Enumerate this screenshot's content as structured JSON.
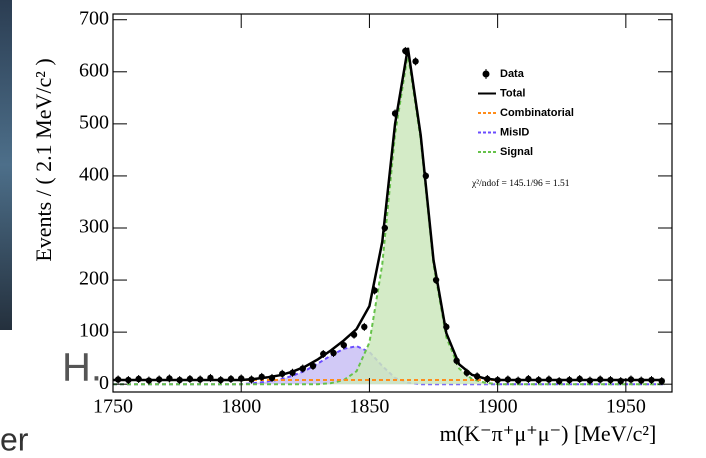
{
  "background_texts": [
    "H.",
    "er"
  ],
  "chart_data": {
    "type": "line",
    "x_label": "m(K⁻π⁺μ⁺μ⁻) [MeV/c²]",
    "y_label": "Events / ( 2.1 MeV/c² )",
    "annotation": "χ²/ndof = 145.1/96 = 1.51",
    "xlim": [
      1750,
      1968
    ],
    "ylim": [
      -15,
      711
    ],
    "xticks": [
      1750,
      1800,
      1850,
      1900,
      1950
    ],
    "yticks": [
      0,
      100,
      200,
      300,
      400,
      500,
      600,
      700
    ],
    "x": [
      1750,
      1755,
      1760,
      1765,
      1770,
      1775,
      1780,
      1785,
      1790,
      1795,
      1800,
      1805,
      1810,
      1815,
      1820,
      1825,
      1830,
      1835,
      1840,
      1845,
      1850,
      1855,
      1860,
      1865,
      1870,
      1875,
      1880,
      1885,
      1890,
      1895,
      1900,
      1905,
      1910,
      1915,
      1920,
      1925,
      1930,
      1935,
      1940,
      1945,
      1950,
      1955,
      1960,
      1965
    ],
    "series": [
      {
        "name": "Data",
        "color": "#000000",
        "kind": "points",
        "x": [
          1752,
          1756,
          1760,
          1764,
          1768,
          1772,
          1776,
          1780,
          1784,
          1788,
          1792,
          1796,
          1800,
          1804,
          1808,
          1812,
          1816,
          1820,
          1824,
          1828,
          1832,
          1836,
          1840,
          1844,
          1848,
          1852,
          1856,
          1860,
          1864,
          1868,
          1872,
          1876,
          1880,
          1884,
          1888,
          1892,
          1896,
          1900,
          1904,
          1908,
          1912,
          1916,
          1920,
          1924,
          1928,
          1932,
          1936,
          1940,
          1944,
          1948,
          1952,
          1956,
          1960,
          1964
        ],
        "values": [
          9,
          8,
          10,
          7,
          9,
          11,
          8,
          10,
          9,
          12,
          8,
          10,
          11,
          9,
          14,
          12,
          20,
          22,
          30,
          35,
          58,
          60,
          75,
          95,
          110,
          180,
          300,
          520,
          640,
          620,
          400,
          200,
          110,
          45,
          22,
          15,
          10,
          8,
          9,
          7,
          10,
          8,
          9,
          6,
          8,
          10,
          7,
          9,
          8,
          6,
          9,
          7,
          8,
          6
        ]
      },
      {
        "name": "Total",
        "color": "#000000",
        "kind": "line",
        "values": [
          8,
          8,
          8,
          8,
          8,
          8,
          8,
          8,
          8,
          8,
          8,
          10,
          13,
          17,
          24,
          34,
          48,
          65,
          84,
          106,
          150,
          273,
          500,
          646,
          478,
          238,
          98,
          38,
          18,
          11,
          8,
          8,
          8,
          8,
          8,
          8,
          8,
          8,
          8,
          8,
          8,
          8,
          8,
          8
        ]
      },
      {
        "name": "Combinatorial",
        "color": "#ff8c1a",
        "kind": "dashed",
        "values": [
          8,
          8,
          8,
          8,
          8,
          8,
          8,
          8,
          8,
          8,
          8,
          8,
          8,
          8,
          8,
          8,
          8,
          8,
          8,
          8,
          8,
          8,
          8,
          8,
          8,
          8,
          8,
          8,
          8,
          8,
          8,
          8,
          8,
          8,
          8,
          8,
          8,
          8,
          8,
          8,
          8,
          8,
          8,
          8
        ]
      },
      {
        "name": "MisID",
        "color": "#6a4cff",
        "kind": "area",
        "fill": "#c9c0f5",
        "values": [
          0,
          0,
          0,
          0,
          0,
          0,
          0,
          0,
          0,
          0,
          0,
          2,
          5,
          9,
          16,
          26,
          40,
          55,
          68,
          73,
          62,
          35,
          12,
          3,
          0,
          0,
          0,
          0,
          0,
          0,
          0,
          0,
          0,
          0,
          0,
          0,
          0,
          0,
          0,
          0,
          0,
          0,
          0,
          0
        ]
      },
      {
        "name": "Signal",
        "color": "#66c24a",
        "kind": "area",
        "fill": "#cde8bd",
        "values": [
          0,
          0,
          0,
          0,
          0,
          0,
          0,
          0,
          0,
          0,
          0,
          0,
          0,
          0,
          0,
          0,
          0,
          2,
          8,
          25,
          80,
          230,
          480,
          635,
          470,
          230,
          90,
          30,
          10,
          3,
          0,
          0,
          0,
          0,
          0,
          0,
          0,
          0,
          0,
          0,
          0,
          0,
          0,
          0
        ]
      }
    ],
    "legend": "upper right"
  }
}
